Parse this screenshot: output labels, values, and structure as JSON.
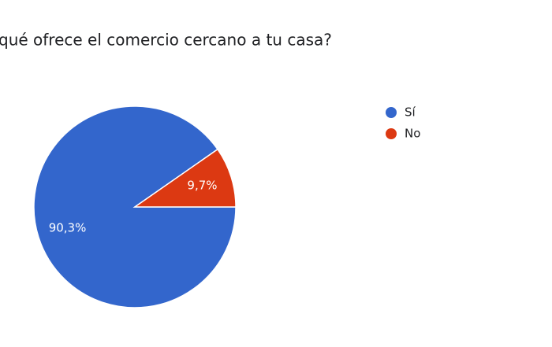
{
  "chart_data": {
    "type": "pie",
    "title": "qué ofrece el comercio cercano a tu casa?",
    "categories": [
      "Sí",
      "No"
    ],
    "values": [
      90.3,
      9.7
    ],
    "value_labels": [
      "90,3%",
      "9,7%"
    ],
    "colors": [
      "#3366cc",
      "#dc3912"
    ],
    "legend_position": "right"
  }
}
